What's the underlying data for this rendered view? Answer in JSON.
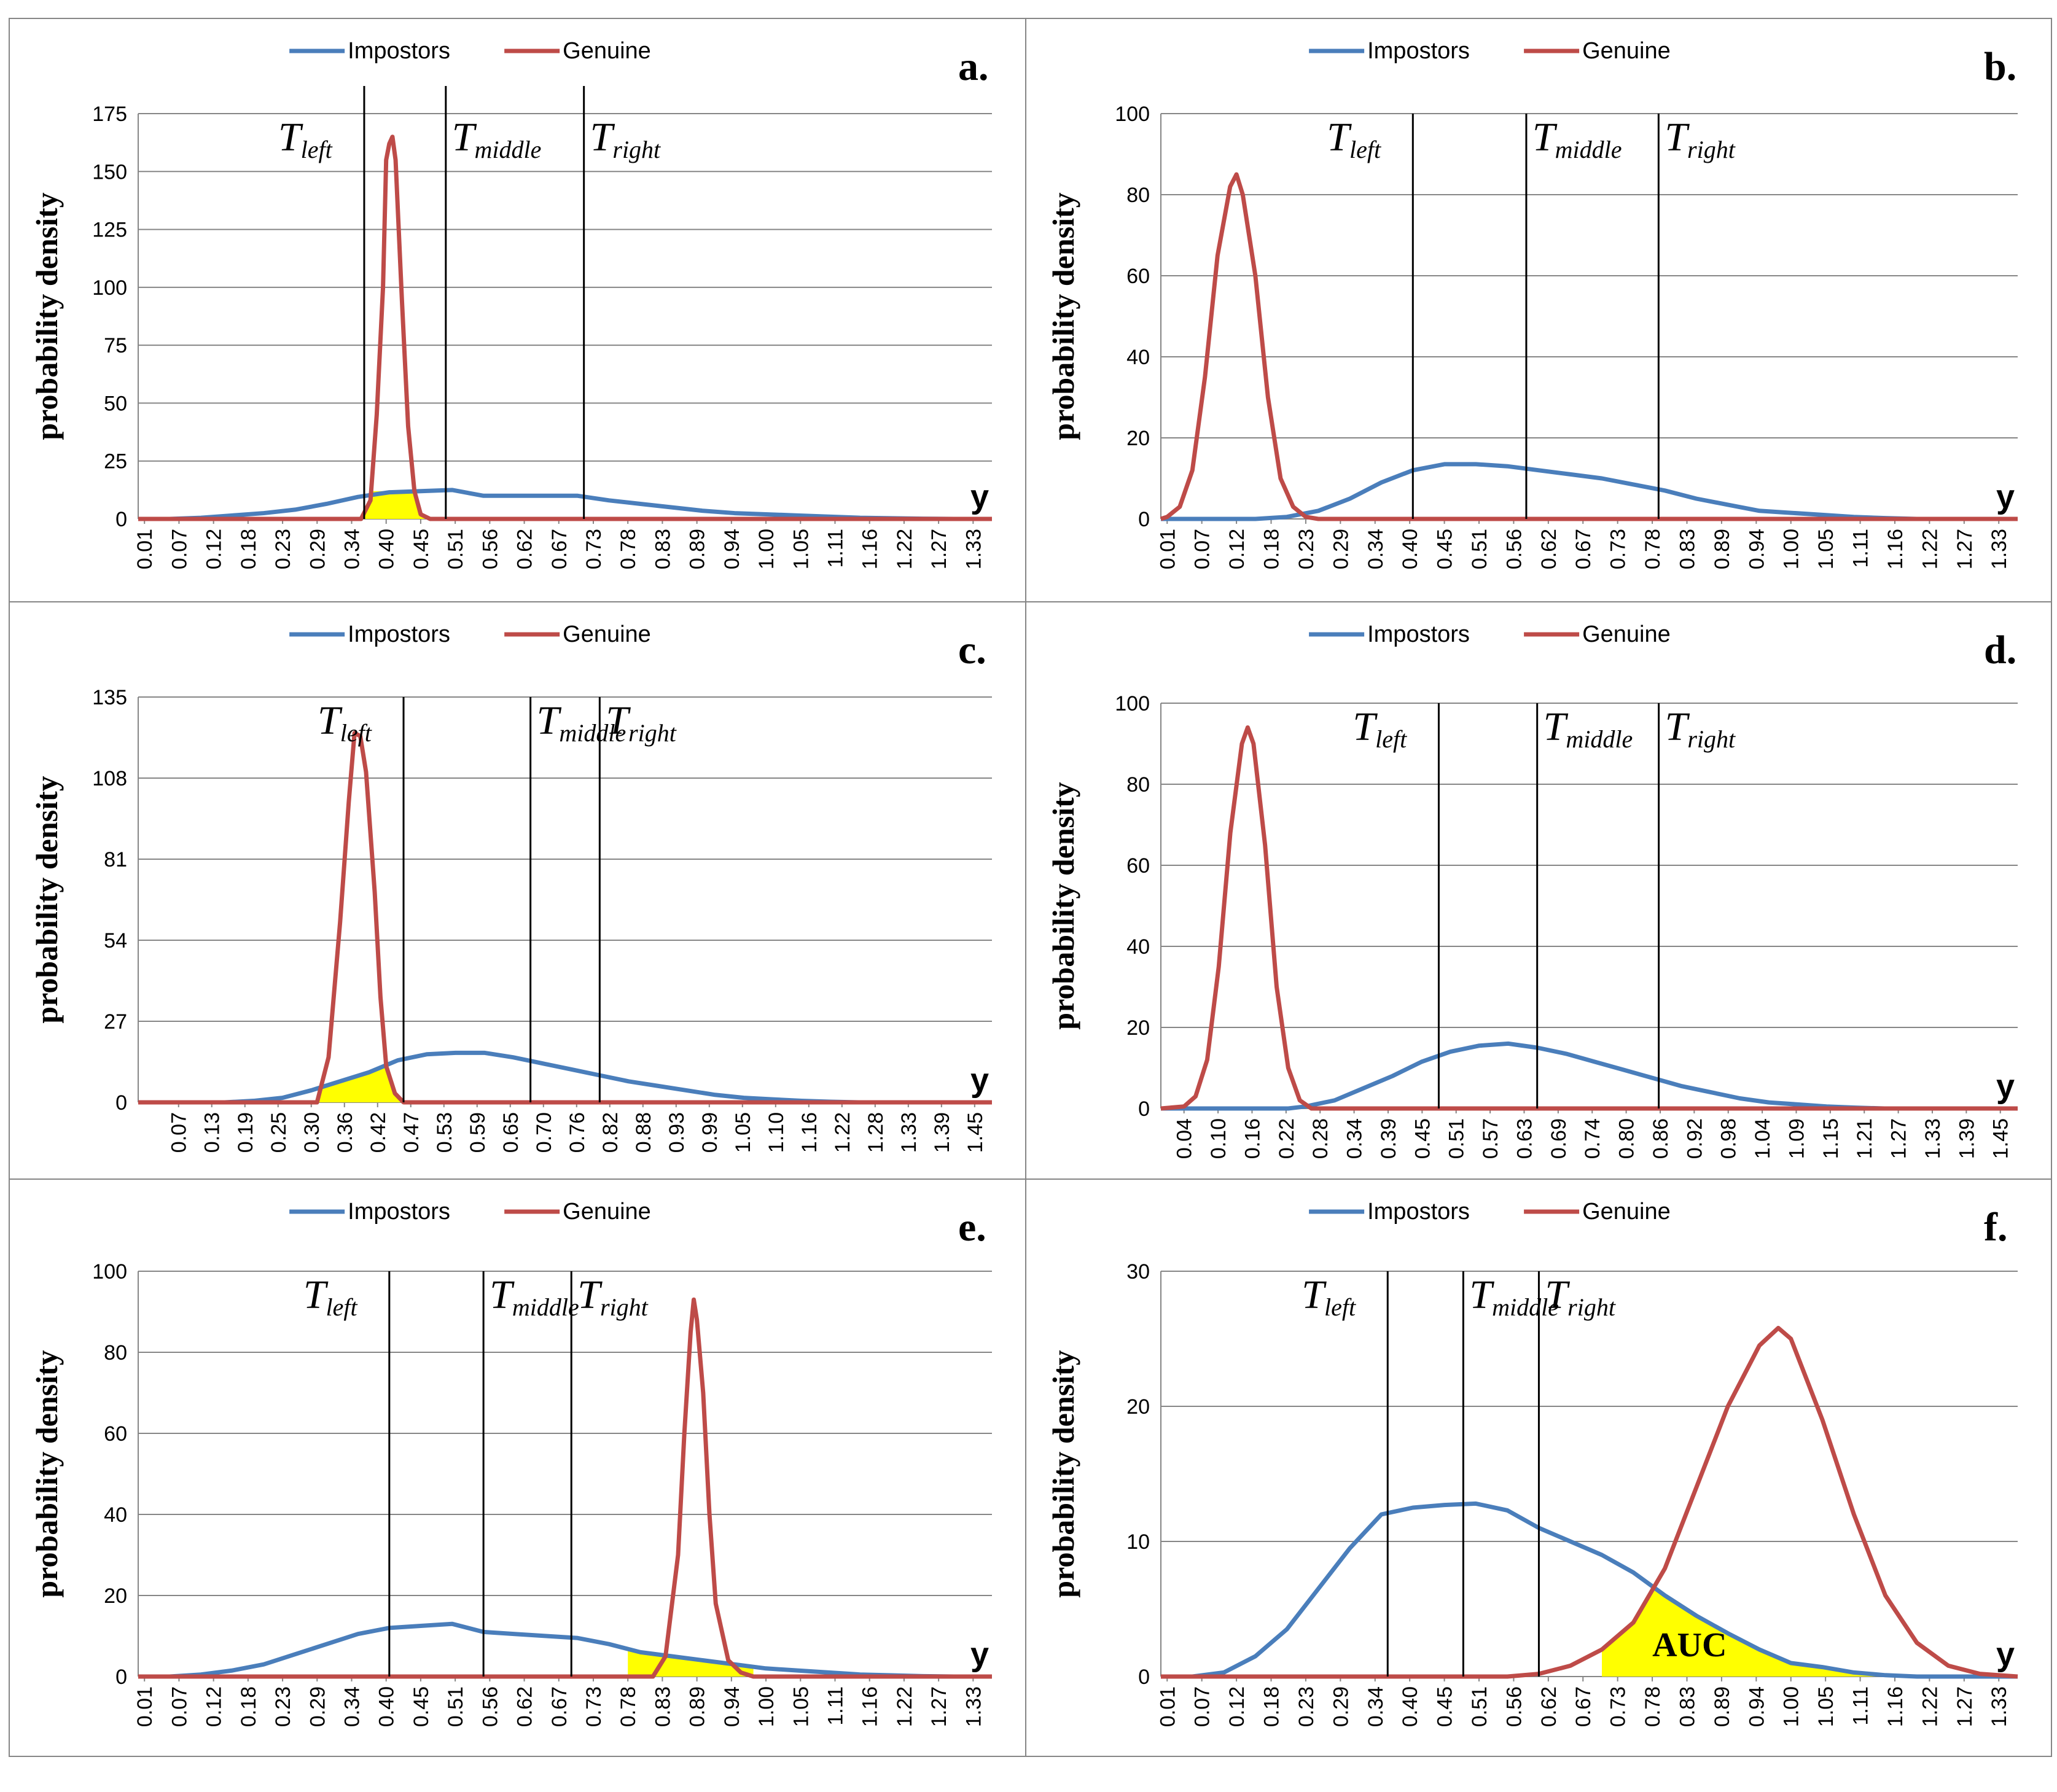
{
  "colors": {
    "impostors": "#4a7ebb",
    "genuine": "#be4b48",
    "fill": "#ffff00",
    "grid": "#868686",
    "frame": "#868686"
  },
  "chart_data": [
    {
      "id": "a",
      "type": "line",
      "panel_label": "a.",
      "ylabel": "probability density",
      "xlabel": "y",
      "legend": [
        "Impostors",
        "Genuine"
      ],
      "ylim": [
        0,
        175
      ],
      "yticks": [
        "0",
        "25",
        "50",
        "75",
        "100",
        "125",
        "150",
        "175"
      ],
      "xticks": [
        "0.01",
        "0.07",
        "0.12",
        "0.18",
        "0.23",
        "0.29",
        "0.34",
        "0.40",
        "0.45",
        "0.51",
        "0.56",
        "0.62",
        "0.67",
        "0.73",
        "0.78",
        "0.83",
        "0.89",
        "0.94",
        "1.00",
        "1.05",
        "1.11",
        "1.16",
        "1.22",
        "1.27",
        "1.33"
      ],
      "thresholds": [
        {
          "base": "T",
          "sub": "left",
          "x": 0.36
        },
        {
          "base": "T",
          "sub": "middle",
          "x": 0.49
        },
        {
          "base": "T",
          "sub": "right",
          "x": 0.71
        }
      ],
      "series": [
        {
          "name": "Impostors",
          "x": [
            0,
            0.05,
            0.1,
            0.15,
            0.2,
            0.25,
            0.3,
            0.35,
            0.4,
            0.45,
            0.5,
            0.55,
            0.6,
            0.65,
            0.7,
            0.75,
            0.8,
            0.85,
            0.9,
            0.95,
            1.0,
            1.05,
            1.1,
            1.15,
            1.2,
            1.25,
            1.3,
            1.36
          ],
          "y": [
            0,
            0,
            0.5,
            1.5,
            2.5,
            4,
            6.5,
            9.5,
            11.5,
            12,
            12.5,
            10,
            10,
            10,
            10,
            8,
            6.5,
            5,
            3.5,
            2.5,
            2,
            1.5,
            1,
            0.5,
            0.3,
            0.1,
            0,
            0
          ]
        },
        {
          "name": "Genuine",
          "x": [
            0,
            0.355,
            0.37,
            0.38,
            0.39,
            0.395,
            0.4,
            0.405,
            0.41,
            0.42,
            0.43,
            0.44,
            0.45,
            0.465,
            1.36
          ],
          "y": [
            0,
            0,
            8,
            45,
            100,
            155,
            162,
            165,
            155,
            95,
            40,
            12,
            2,
            0,
            0
          ]
        }
      ],
      "shaded": {
        "series": "Genuine",
        "from": 0.355,
        "to": 0.465
      }
    },
    {
      "id": "b",
      "type": "line",
      "panel_label": "b.",
      "ylabel": "probability density",
      "xlabel": "y",
      "legend": [
        "Impostors",
        "Genuine"
      ],
      "ylim": [
        0,
        100
      ],
      "yticks": [
        "0",
        "20",
        "40",
        "60",
        "80",
        "100"
      ],
      "xticks": [
        "0.01",
        "0.07",
        "0.12",
        "0.18",
        "0.23",
        "0.29",
        "0.34",
        "0.40",
        "0.45",
        "0.51",
        "0.56",
        "0.62",
        "0.67",
        "0.73",
        "0.78",
        "0.83",
        "0.89",
        "0.94",
        "1.00",
        "1.05",
        "1.11",
        "1.16",
        "1.22",
        "1.27",
        "1.33"
      ],
      "thresholds": [
        {
          "base": "T",
          "sub": "left",
          "x": 0.4
        },
        {
          "base": "T",
          "sub": "middle",
          "x": 0.58
        },
        {
          "base": "T",
          "sub": "right",
          "x": 0.79
        }
      ],
      "series": [
        {
          "name": "Impostors",
          "x": [
            0,
            0.15,
            0.2,
            0.25,
            0.3,
            0.35,
            0.4,
            0.45,
            0.5,
            0.55,
            0.6,
            0.65,
            0.7,
            0.75,
            0.8,
            0.85,
            0.9,
            0.95,
            1.0,
            1.05,
            1.1,
            1.15,
            1.2,
            1.25,
            1.36
          ],
          "y": [
            0,
            0,
            0.5,
            2,
            5,
            9,
            12,
            13.5,
            13.5,
            13,
            12,
            11,
            10,
            8.5,
            7,
            5,
            3.5,
            2,
            1.5,
            1,
            0.5,
            0.2,
            0,
            0,
            0
          ]
        },
        {
          "name": "Genuine",
          "x": [
            0,
            0.01,
            0.03,
            0.05,
            0.07,
            0.09,
            0.11,
            0.12,
            0.13,
            0.15,
            0.17,
            0.19,
            0.21,
            0.23,
            0.25,
            1.36
          ],
          "y": [
            0,
            0.5,
            3,
            12,
            35,
            65,
            82,
            85,
            80,
            60,
            30,
            10,
            3,
            0.5,
            0,
            0
          ]
        }
      ]
    },
    {
      "id": "c",
      "type": "line",
      "panel_label": "c.",
      "ylabel": "probability density",
      "xlabel": "y",
      "legend": [
        "Impostors",
        "Genuine"
      ],
      "ylim": [
        0,
        135
      ],
      "yticks": [
        "0",
        "27",
        "54",
        "81",
        "108",
        "135"
      ],
      "xticks": [
        "0.07",
        "0.13",
        "0.19",
        "0.25",
        "0.30",
        "0.36",
        "0.42",
        "0.47",
        "0.53",
        "0.59",
        "0.65",
        "0.70",
        "0.76",
        "0.82",
        "0.88",
        "0.93",
        "0.99",
        "1.05",
        "1.10",
        "1.16",
        "1.22",
        "1.28",
        "1.33",
        "1.39",
        "1.45"
      ],
      "thresholds": [
        {
          "base": "T",
          "sub": "left",
          "x": 0.46
        },
        {
          "base": "T",
          "sub": "middle",
          "x": 0.68
        },
        {
          "base": "T",
          "sub": "right",
          "x": 0.8
        }
      ],
      "series": [
        {
          "name": "Impostors",
          "x": [
            0,
            0.15,
            0.2,
            0.25,
            0.3,
            0.35,
            0.4,
            0.45,
            0.5,
            0.55,
            0.6,
            0.65,
            0.7,
            0.75,
            0.8,
            0.85,
            0.9,
            0.95,
            1.0,
            1.05,
            1.1,
            1.15,
            1.2,
            1.25,
            1.3,
            1.48
          ],
          "y": [
            0,
            0,
            0.5,
            1.5,
            4,
            7,
            10,
            14,
            16,
            16.5,
            16.5,
            15,
            13,
            11,
            9,
            7,
            5.5,
            4,
            2.5,
            1.5,
            1,
            0.5,
            0.2,
            0,
            0,
            0
          ]
        },
        {
          "name": "Genuine",
          "x": [
            0,
            0.31,
            0.33,
            0.35,
            0.365,
            0.375,
            0.385,
            0.395,
            0.41,
            0.42,
            0.43,
            0.445,
            0.46,
            1.48
          ],
          "y": [
            0,
            0,
            15,
            60,
            100,
            123,
            122,
            110,
            70,
            35,
            12,
            3,
            0,
            0
          ]
        }
      ],
      "shaded": {
        "series": "Genuine",
        "from": 0.31,
        "to": 0.46
      }
    },
    {
      "id": "d",
      "type": "line",
      "panel_label": "d.",
      "ylabel": "probability density",
      "xlabel": "y",
      "legend": [
        "Impostors",
        "Genuine"
      ],
      "ylim": [
        0,
        100
      ],
      "yticks": [
        "0",
        "20",
        "40",
        "60",
        "80",
        "100"
      ],
      "xticks": [
        "0.04",
        "0.10",
        "0.16",
        "0.22",
        "0.28",
        "0.34",
        "0.39",
        "0.45",
        "0.51",
        "0.57",
        "0.63",
        "0.69",
        "0.74",
        "0.80",
        "0.86",
        "0.92",
        "0.98",
        "1.04",
        "1.09",
        "1.15",
        "1.21",
        "1.27",
        "1.33",
        "1.39",
        "1.45"
      ],
      "thresholds": [
        {
          "base": "T",
          "sub": "left",
          "x": 0.48
        },
        {
          "base": "T",
          "sub": "middle",
          "x": 0.65
        },
        {
          "base": "T",
          "sub": "right",
          "x": 0.86
        }
      ],
      "series": [
        {
          "name": "Impostors",
          "x": [
            0,
            0.22,
            0.25,
            0.3,
            0.35,
            0.4,
            0.45,
            0.5,
            0.55,
            0.6,
            0.65,
            0.7,
            0.75,
            0.8,
            0.85,
            0.9,
            0.95,
            1.0,
            1.05,
            1.1,
            1.15,
            1.2,
            1.25,
            1.3,
            1.48
          ],
          "y": [
            0,
            0,
            0.5,
            2,
            5,
            8,
            11.5,
            14,
            15.5,
            16,
            15,
            13.5,
            11.5,
            9.5,
            7.5,
            5.5,
            4,
            2.5,
            1.5,
            1,
            0.5,
            0.2,
            0,
            0,
            0
          ]
        },
        {
          "name": "Genuine",
          "x": [
            0,
            0.04,
            0.06,
            0.08,
            0.1,
            0.12,
            0.14,
            0.15,
            0.16,
            0.18,
            0.2,
            0.22,
            0.24,
            0.26,
            1.48
          ],
          "y": [
            0,
            0.5,
            3,
            12,
            35,
            68,
            90,
            94,
            90,
            65,
            30,
            10,
            2,
            0,
            0
          ]
        }
      ]
    },
    {
      "id": "e",
      "type": "line",
      "panel_label": "e.",
      "ylabel": "probability density",
      "xlabel": "y",
      "legend": [
        "Impostors",
        "Genuine"
      ],
      "ylim": [
        0,
        100
      ],
      "yticks": [
        "0",
        "20",
        "40",
        "60",
        "80",
        "100"
      ],
      "xticks": [
        "0.01",
        "0.07",
        "0.12",
        "0.18",
        "0.23",
        "0.29",
        "0.34",
        "0.40",
        "0.45",
        "0.51",
        "0.56",
        "0.62",
        "0.67",
        "0.73",
        "0.78",
        "0.83",
        "0.89",
        "0.94",
        "1.00",
        "1.05",
        "1.11",
        "1.16",
        "1.22",
        "1.27",
        "1.33"
      ],
      "thresholds": [
        {
          "base": "T",
          "sub": "left",
          "x": 0.4
        },
        {
          "base": "T",
          "sub": "middle",
          "x": 0.55
        },
        {
          "base": "T",
          "sub": "right",
          "x": 0.69
        }
      ],
      "series": [
        {
          "name": "Impostors",
          "x": [
            0,
            0.05,
            0.1,
            0.15,
            0.2,
            0.25,
            0.3,
            0.35,
            0.4,
            0.45,
            0.5,
            0.55,
            0.6,
            0.65,
            0.7,
            0.75,
            0.8,
            0.85,
            0.9,
            0.95,
            1.0,
            1.05,
            1.1,
            1.15,
            1.2,
            1.25,
            1.3,
            1.36
          ],
          "y": [
            0,
            0,
            0.5,
            1.5,
            3,
            5.5,
            8,
            10.5,
            12,
            12.5,
            13,
            11,
            10.5,
            10,
            9.5,
            8,
            6,
            5,
            4,
            3,
            2,
            1.5,
            1,
            0.5,
            0.3,
            0.1,
            0,
            0
          ]
        },
        {
          "name": "Genuine",
          "x": [
            0,
            0.82,
            0.84,
            0.86,
            0.87,
            0.88,
            0.885,
            0.89,
            0.9,
            0.91,
            0.92,
            0.94,
            0.96,
            0.98,
            1.36
          ],
          "y": [
            0,
            0,
            5,
            30,
            60,
            85,
            93,
            88,
            70,
            40,
            18,
            4,
            1,
            0,
            0
          ]
        }
      ],
      "shaded": {
        "series": "Impostors",
        "from": 0.78,
        "to": 0.98
      }
    },
    {
      "id": "f",
      "type": "line",
      "panel_label": "f.",
      "ylabel": "probability density",
      "xlabel": "y",
      "legend": [
        "Impostors",
        "Genuine"
      ],
      "ylim": [
        0,
        30
      ],
      "yticks": [
        "0",
        "10",
        "20",
        "30"
      ],
      "xticks": [
        "0.01",
        "0.07",
        "0.12",
        "0.18",
        "0.23",
        "0.29",
        "0.34",
        "0.40",
        "0.45",
        "0.51",
        "0.56",
        "0.62",
        "0.67",
        "0.73",
        "0.78",
        "0.83",
        "0.89",
        "0.94",
        "1.00",
        "1.05",
        "1.11",
        "1.16",
        "1.22",
        "1.27",
        "1.33"
      ],
      "thresholds": [
        {
          "base": "T",
          "sub": "left",
          "x": 0.36
        },
        {
          "base": "T",
          "sub": "middle",
          "x": 0.48
        },
        {
          "base": "T",
          "sub": "right",
          "x": 0.6
        }
      ],
      "annotation": "AUC",
      "series": [
        {
          "name": "Impostors",
          "x": [
            0,
            0.05,
            0.1,
            0.15,
            0.2,
            0.25,
            0.3,
            0.35,
            0.4,
            0.45,
            0.5,
            0.55,
            0.6,
            0.65,
            0.7,
            0.75,
            0.8,
            0.85,
            0.9,
            0.95,
            1.0,
            1.05,
            1.1,
            1.15,
            1.2,
            1.25,
            1.36
          ],
          "y": [
            0,
            0,
            0.3,
            1.5,
            3.5,
            6.5,
            9.5,
            12,
            12.5,
            12.7,
            12.8,
            12.3,
            11,
            10,
            9,
            7.7,
            6,
            4.5,
            3.2,
            2,
            1,
            0.7,
            0.3,
            0.1,
            0,
            0,
            0
          ]
        },
        {
          "name": "Genuine",
          "x": [
            0,
            0.55,
            0.6,
            0.65,
            0.7,
            0.75,
            0.8,
            0.85,
            0.9,
            0.95,
            0.98,
            1.0,
            1.05,
            1.1,
            1.15,
            1.2,
            1.25,
            1.3,
            1.36
          ],
          "y": [
            0,
            0,
            0.2,
            0.8,
            2,
            4,
            8,
            14,
            20,
            24.5,
            25.8,
            25,
            19,
            12,
            6,
            2.5,
            0.8,
            0.2,
            0
          ]
        }
      ],
      "shaded": {
        "series": "min",
        "from": 0.7,
        "to": 1.2
      }
    }
  ]
}
